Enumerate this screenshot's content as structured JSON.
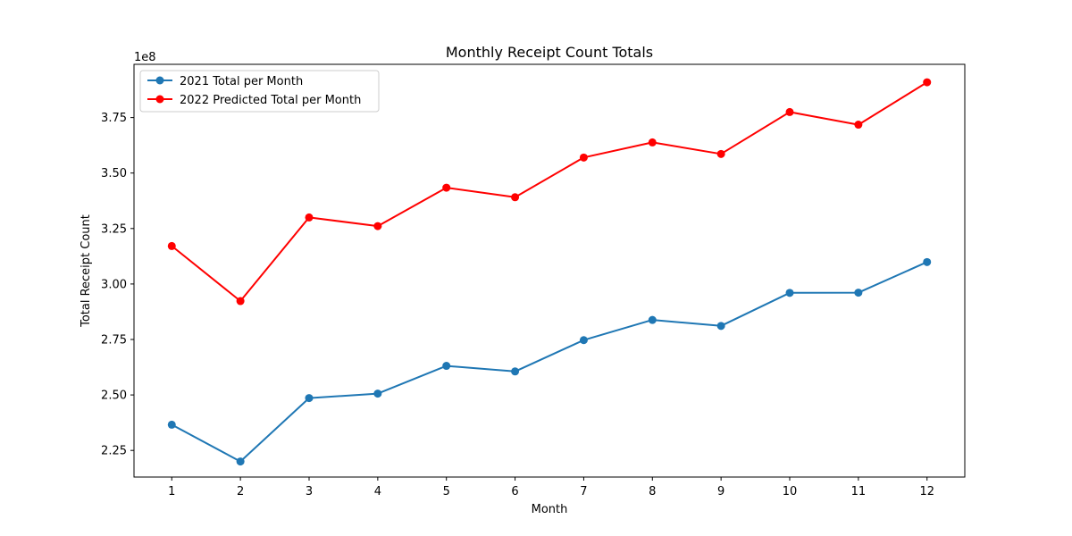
{
  "chart_data": {
    "type": "line",
    "title": "Monthly Receipt Count Totals",
    "xlabel": "Month",
    "ylabel": "Total Receipt Count",
    "y_scale_label": "1e8",
    "x": [
      1,
      2,
      3,
      4,
      5,
      6,
      7,
      8,
      9,
      10,
      11,
      12
    ],
    "xlim": [
      0.45,
      12.55
    ],
    "ylim": [
      2.13,
      3.99
    ],
    "y_ticks": [
      2.25,
      2.5,
      2.75,
      3.0,
      3.25,
      3.5,
      3.75
    ],
    "y_tick_labels": [
      "2.25",
      "2.50",
      "2.75",
      "3.00",
      "3.25",
      "3.50",
      "3.75"
    ],
    "x_tick_labels": [
      "1",
      "2",
      "3",
      "4",
      "5",
      "6",
      "7",
      "8",
      "9",
      "10",
      "11",
      "12"
    ],
    "grid": false,
    "legend_position": "top-left",
    "series": [
      {
        "name": "2021 Total per Month",
        "color": "#1f77b4",
        "values": [
          2.366,
          2.2,
          2.486,
          2.506,
          2.631,
          2.606,
          2.747,
          2.838,
          2.811,
          2.96,
          2.961,
          3.099
        ]
      },
      {
        "name": "2022 Predicted Total per Month",
        "color": "#ff0000",
        "values": [
          3.171,
          2.923,
          3.3,
          3.261,
          3.434,
          3.391,
          3.57,
          3.638,
          3.586,
          3.775,
          3.718,
          3.909
        ]
      }
    ]
  }
}
